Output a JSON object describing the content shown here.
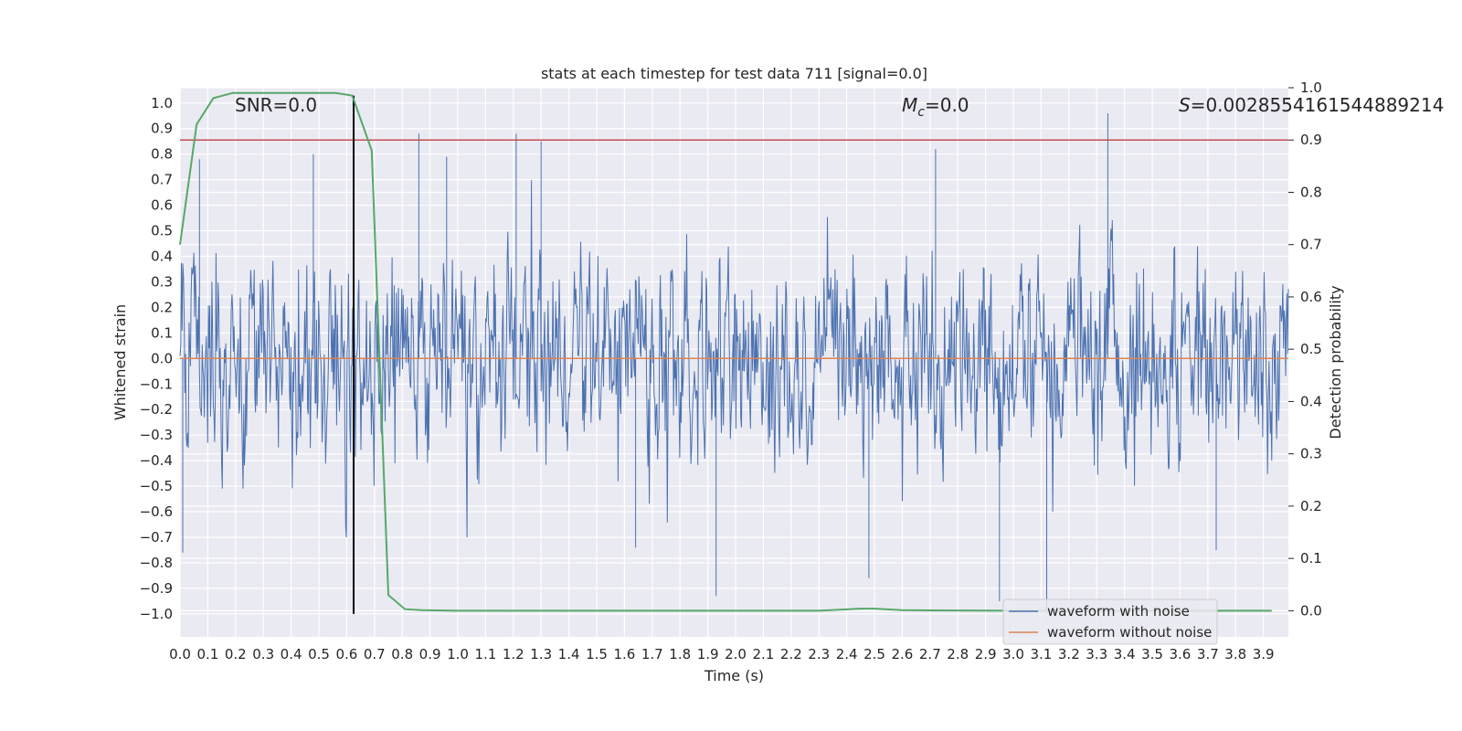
{
  "chart_data": {
    "type": "line",
    "title": "stats at each timestep for test data 711 [signal=0.0]",
    "xlabel": "Time (s)",
    "ylabel": "Whitened strain",
    "y2label": "Detection probability",
    "xlim": [
      0.0,
      3.99
    ],
    "ylim": [
      -1.09,
      1.06
    ],
    "y2lim": [
      -0.05,
      1.0
    ],
    "x_ticks": [
      "0.0",
      "0.1",
      "0.2",
      "0.3",
      "0.4",
      "0.5",
      "0.6",
      "0.7",
      "0.8",
      "0.9",
      "1.0",
      "1.1",
      "1.2",
      "1.3",
      "1.4",
      "1.5",
      "1.6",
      "1.7",
      "1.8",
      "1.9",
      "2.0",
      "2.1",
      "2.2",
      "2.3",
      "2.4",
      "2.5",
      "2.6",
      "2.7",
      "2.8",
      "2.9",
      "3.0",
      "3.1",
      "3.2",
      "3.3",
      "3.4",
      "3.5",
      "3.6",
      "3.7",
      "3.8",
      "3.9"
    ],
    "y_ticks": [
      "1.0",
      "0.9",
      "0.8",
      "0.7",
      "0.6",
      "0.5",
      "0.4",
      "0.3",
      "0.2",
      "0.1",
      "0.0",
      "-0.1",
      "-0.2",
      "-0.3",
      "-0.4",
      "-0.5",
      "-0.6",
      "-0.7",
      "-0.8",
      "-0.9",
      "-1.0"
    ],
    "y2_ticks": [
      "1.0",
      "0.9",
      "0.8",
      "0.7",
      "0.6",
      "0.5",
      "0.4",
      "0.3",
      "0.2",
      "0.1",
      "0.0"
    ],
    "grid": true,
    "legend_placement": "lower-right",
    "annotations": {
      "snr": "SNR=0.0",
      "mc_symbol": "M",
      "mc_subscript": "c",
      "mc_value": "=0.0",
      "s_symbol": "S",
      "s_value": "=0.0028554161544889214"
    },
    "series": [
      {
        "name": "waveform with noise",
        "color": "#4c72b0",
        "axis": "left",
        "description_values": "dense noise, peak extremes approx +0.96 at 3.34 s and -1.0 at 3.12 s",
        "extremes": [
          {
            "x": 0.01,
            "y": -0.76
          },
          {
            "x": 0.07,
            "y": 0.78
          },
          {
            "x": 0.48,
            "y": 0.8
          },
          {
            "x": 0.86,
            "y": 0.88
          },
          {
            "x": 0.96,
            "y": 0.79
          },
          {
            "x": 1.21,
            "y": 0.88
          },
          {
            "x": 1.3,
            "y": 0.85
          },
          {
            "x": 1.64,
            "y": -0.74
          },
          {
            "x": 1.93,
            "y": -0.93
          },
          {
            "x": 2.48,
            "y": -0.86
          },
          {
            "x": 2.72,
            "y": 0.82
          },
          {
            "x": 2.95,
            "y": -0.95
          },
          {
            "x": 3.12,
            "y": -1.0
          },
          {
            "x": 3.34,
            "y": 0.96
          },
          {
            "x": 3.73,
            "y": -0.75
          }
        ]
      },
      {
        "name": "waveform without noise",
        "color": "#dd8452",
        "axis": "left",
        "x": [
          0.0,
          3.99
        ],
        "y": [
          0.0,
          0.0
        ]
      },
      {
        "name": "",
        "color": "#55a868",
        "axis": "right",
        "x": [
          0.0,
          0.06,
          0.12,
          0.19,
          0.25,
          0.31,
          0.37,
          0.44,
          0.5,
          0.56,
          0.62,
          0.69,
          0.75,
          0.81,
          0.87,
          1.0,
          2.0,
          2.3,
          2.45,
          2.5,
          2.6,
          3.0,
          3.93
        ],
        "y": [
          0.7,
          0.93,
          0.98,
          0.99,
          0.99,
          0.99,
          0.99,
          0.99,
          0.99,
          0.99,
          0.985,
          0.88,
          0.03,
          0.003,
          0.001,
          0.0,
          0.0,
          0.0,
          0.004,
          0.004,
          0.001,
          0.0,
          0.0
        ]
      }
    ],
    "reference_lines": [
      {
        "type": "horizontal",
        "axis": "right",
        "y": 0.9,
        "color": "#c44e52"
      },
      {
        "type": "vertical",
        "x": 0.625,
        "y_from": -1.0,
        "y_to": 0.985,
        "color": "#000000"
      }
    ]
  }
}
